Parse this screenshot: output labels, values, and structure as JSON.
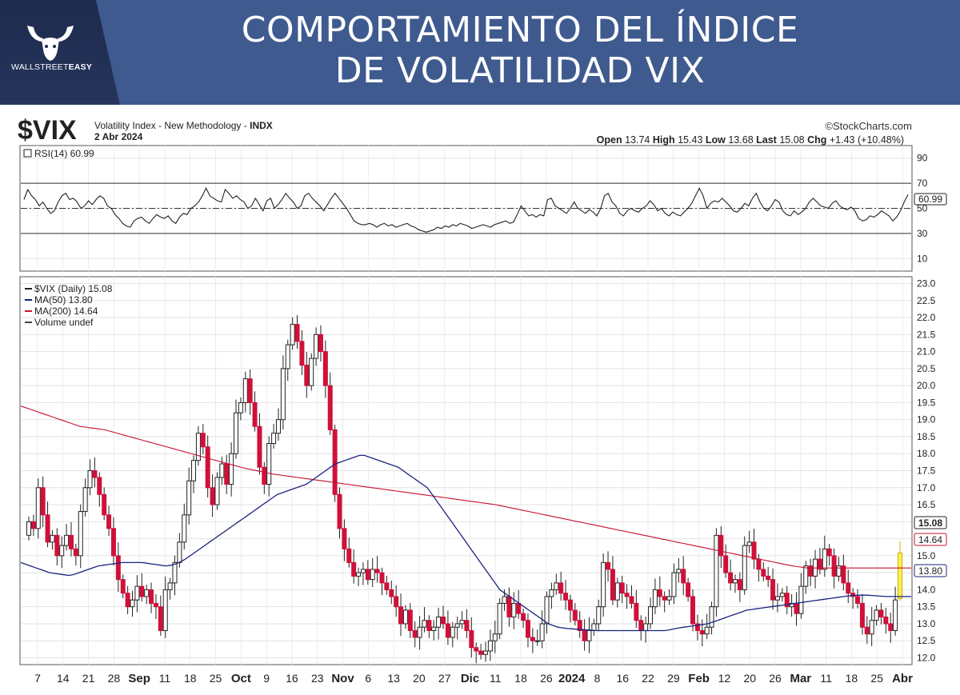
{
  "banner": {
    "title_line1": "COMPORTAMIENTO DEL ÍNDICE",
    "title_line2": "DE VOLATILIDAD VIX",
    "logo_text_light": "WALLSTREET",
    "logo_text_bold": "EASY",
    "logo_icon": "bull-head-icon",
    "background_color": "#3f5a8f",
    "logo_background_color": "#1e2a4d"
  },
  "chart_header": {
    "symbol": "$VIX",
    "description": "Volatility Index - New Methodology -",
    "exchange": "INDX",
    "date": "2 Abr 2024",
    "source": "©StockCharts.com",
    "open_label": "Open",
    "open": "13.74",
    "high_label": "High",
    "high": "15.43",
    "low_label": "Low",
    "low": "13.68",
    "last_label": "Last",
    "last": "15.08",
    "chg_label": "Chg",
    "chg": "+1.43 (+10.48%)"
  },
  "chart_data": [
    {
      "type": "line",
      "panel": "rsi",
      "legend": "RSI(14) 60.99",
      "ylim": [
        0,
        100
      ],
      "yticks": [
        "90",
        "70",
        "50",
        "30",
        "10"
      ],
      "reference_lines": [
        70,
        50,
        30
      ],
      "last_value_label": "60.99",
      "values": [
        57,
        65,
        60,
        57,
        52,
        55,
        50,
        46,
        48,
        55,
        60,
        62,
        57,
        58,
        55,
        50,
        52,
        56,
        53,
        57,
        60,
        58,
        52,
        50,
        45,
        42,
        38,
        36,
        35,
        40,
        42,
        43,
        40,
        38,
        42,
        45,
        43,
        42,
        44,
        40,
        38,
        43,
        46,
        45,
        50,
        52,
        55,
        60,
        66,
        60,
        58,
        56,
        55,
        65,
        62,
        58,
        60,
        57,
        55,
        50,
        52,
        58,
        53,
        48,
        56,
        58,
        50,
        53,
        57,
        62,
        58,
        55,
        50,
        52,
        60,
        62,
        58,
        55,
        52,
        48,
        53,
        58,
        62,
        58,
        54,
        50,
        45,
        40,
        38,
        37,
        37,
        38,
        37,
        35,
        37,
        38,
        36,
        37,
        35,
        36,
        37,
        38,
        36,
        35,
        33,
        32,
        31,
        32,
        33,
        35,
        34,
        36,
        35,
        37,
        36,
        38,
        37,
        36,
        34,
        35,
        36,
        37,
        36,
        35,
        37,
        38,
        39,
        40,
        38,
        39,
        45,
        52,
        48,
        44,
        45,
        43,
        45,
        44,
        57,
        58,
        52,
        50,
        48,
        46,
        50,
        55,
        50,
        48,
        46,
        49,
        47,
        44,
        50,
        60,
        62,
        55,
        52,
        46,
        44,
        48,
        50,
        48,
        47,
        50,
        52,
        56,
        53,
        48,
        50,
        46,
        44,
        47,
        45,
        44,
        47,
        50,
        54,
        60,
        66,
        60,
        50,
        54,
        56,
        55,
        58,
        55,
        52,
        48,
        47,
        50,
        54,
        52,
        58,
        62,
        55,
        50,
        48,
        52,
        57,
        55,
        48,
        45,
        44,
        48,
        45,
        47,
        50,
        55,
        58,
        55,
        52,
        51,
        50,
        54,
        56,
        52,
        50,
        49,
        51,
        48,
        42,
        40,
        41,
        44,
        43,
        45,
        48,
        46,
        44,
        40,
        43,
        48,
        55,
        61
      ],
      "x_labels": [
        "7",
        "14",
        "21",
        "28",
        "Sep",
        "11",
        "18",
        "25",
        "Oct",
        "9",
        "16",
        "23",
        "Nov",
        "6",
        "13",
        "20",
        "27",
        "Dic",
        "11",
        "18",
        "26",
        "2024",
        "8",
        "16",
        "22",
        "29",
        "Feb",
        "12",
        "20",
        "26",
        "Mar",
        "11",
        "18",
        "25",
        "Abr"
      ],
      "bold_x_labels": [
        "Sep",
        "Oct",
        "Nov",
        "Dic",
        "2024",
        "Feb",
        "Mar",
        "Abr"
      ]
    },
    {
      "type": "candlestick",
      "panel": "price",
      "legend": [
        {
          "label": "$VIX (Daily) 15.08",
          "color": "#222222"
        },
        {
          "label": "MA(50) 13.80",
          "color": "#1a237e"
        },
        {
          "label": "MA(200) 14.64",
          "color": "#c8102e"
        },
        {
          "label": "Volume undef",
          "color": "#444444"
        }
      ],
      "ylim": [
        11.8,
        23.2
      ],
      "yticks": [
        "23.0",
        "22.5",
        "22.0",
        "21.5",
        "21.0",
        "20.5",
        "20.0",
        "19.5",
        "19.0",
        "18.5",
        "18.0",
        "17.5",
        "17.0",
        "16.5",
        "16.0",
        "15.5",
        "15.0",
        "14.5",
        "14.0",
        "13.5",
        "13.0",
        "12.5",
        "12.0"
      ],
      "last_price_label": "15.08",
      "ma200_label": "14.64",
      "ma50_label": "13.80",
      "up_color": "#ffffff",
      "down_color": "#d0103a",
      "last_bar_color": "#ffee55",
      "ma50_color": "#1a237e",
      "ma200_color": "#c8102e",
      "close": [
        16.0,
        15.8,
        17.0,
        16.2,
        15.4,
        15.6,
        15.0,
        15.3,
        15.6,
        15.2,
        15.0,
        16.3,
        17.0,
        17.5,
        17.3,
        16.8,
        16.2,
        15.8,
        15.0,
        14.3,
        13.9,
        13.5,
        13.7,
        14.1,
        13.8,
        14.0,
        13.6,
        13.5,
        12.8,
        14.0,
        14.2,
        14.8,
        15.4,
        16.2,
        17.2,
        17.8,
        18.6,
        18.2,
        17.0,
        16.5,
        17.3,
        17.7,
        17.1,
        18.0,
        19.2,
        19.5,
        20.2,
        19.5,
        18.8,
        17.6,
        17.1,
        18.3,
        18.6,
        19.0,
        20.5,
        21.2,
        21.8,
        21.3,
        20.6,
        20.0,
        20.8,
        21.5,
        21.0,
        20.0,
        18.7,
        16.8,
        15.8,
        15.2,
        14.8,
        14.4,
        14.5,
        14.6,
        14.3,
        14.6,
        14.5,
        14.2,
        14.0,
        13.8,
        13.5,
        13.0,
        13.4,
        12.8,
        12.6,
        12.9,
        13.1,
        12.8,
        12.9,
        13.2,
        13.0,
        12.6,
        12.9,
        13.0,
        13.1,
        12.8,
        12.3,
        12.2,
        12.1,
        12.2,
        12.5,
        12.7,
        13.6,
        13.8,
        13.2,
        13.6,
        13.3,
        13.1,
        12.6,
        12.5,
        12.5,
        13.0,
        13.8,
        14.0,
        14.2,
        13.9,
        13.7,
        13.4,
        13.1,
        12.8,
        12.5,
        12.8,
        13.0,
        13.5,
        14.8,
        14.6,
        13.7,
        14.2,
        13.9,
        13.8,
        13.6,
        13.1,
        12.8,
        13.0,
        13.5,
        14.0,
        13.8,
        13.7,
        13.8,
        14.5,
        14.6,
        14.2,
        13.8,
        13.0,
        12.8,
        12.7,
        12.9,
        13.5,
        15.6,
        15.0,
        14.5,
        14.2,
        14.3,
        14.0,
        15.3,
        15.4,
        14.9,
        14.6,
        14.4,
        14.3,
        13.7,
        13.8,
        13.9,
        13.5,
        13.6,
        13.3,
        14.1,
        14.7,
        14.4,
        14.9,
        14.6,
        15.2,
        15.0,
        14.4,
        14.7,
        14.2,
        13.9,
        13.8,
        13.6,
        12.9,
        12.7,
        13.1,
        13.4,
        13.2,
        13.0,
        12.8,
        13.7,
        15.08
      ],
      "open": [
        15.6,
        16.0,
        15.8,
        17.0,
        16.2,
        15.4,
        15.6,
        15.0,
        15.3,
        15.6,
        15.2,
        15.0,
        16.3,
        17.0,
        17.5,
        17.3,
        16.8,
        16.2,
        15.8,
        15.0,
        14.3,
        13.9,
        13.5,
        13.7,
        14.1,
        13.8,
        14.0,
        13.6,
        13.5,
        12.8,
        14.0,
        14.2,
        14.8,
        15.4,
        16.2,
        17.2,
        17.8,
        18.6,
        18.2,
        17.0,
        16.5,
        17.3,
        17.7,
        17.1,
        18.0,
        19.2,
        19.5,
        20.2,
        19.5,
        18.8,
        17.6,
        17.1,
        18.3,
        18.6,
        19.0,
        20.5,
        21.2,
        21.8,
        21.3,
        20.6,
        20.0,
        20.8,
        21.5,
        21.0,
        20.0,
        18.7,
        16.8,
        15.8,
        15.2,
        14.8,
        14.4,
        14.5,
        14.6,
        14.3,
        14.6,
        14.5,
        14.2,
        14.0,
        13.8,
        13.5,
        13.0,
        13.4,
        12.8,
        12.6,
        12.9,
        13.1,
        12.8,
        12.9,
        13.2,
        13.0,
        12.6,
        12.9,
        13.0,
        13.1,
        12.8,
        12.3,
        12.2,
        12.1,
        12.2,
        12.5,
        12.7,
        13.6,
        13.8,
        13.2,
        13.6,
        13.3,
        13.1,
        12.6,
        12.5,
        12.5,
        13.0,
        13.8,
        14.0,
        14.2,
        13.9,
        13.7,
        13.4,
        13.1,
        12.8,
        12.5,
        12.8,
        13.0,
        13.5,
        14.8,
        14.6,
        13.7,
        14.2,
        13.9,
        13.8,
        13.6,
        13.1,
        12.8,
        13.0,
        13.5,
        14.0,
        13.8,
        13.7,
        13.8,
        14.5,
        14.6,
        14.2,
        13.8,
        13.0,
        12.8,
        12.7,
        12.9,
        13.5,
        15.6,
        15.0,
        14.5,
        14.2,
        14.3,
        14.0,
        15.3,
        15.4,
        14.9,
        14.6,
        14.4,
        14.3,
        13.7,
        13.8,
        13.9,
        13.5,
        13.6,
        13.3,
        14.1,
        14.7,
        14.4,
        14.9,
        14.6,
        15.2,
        15.0,
        14.4,
        14.7,
        14.2,
        13.9,
        13.8,
        13.6,
        12.9,
        12.7,
        13.1,
        13.4,
        13.2,
        13.0,
        12.8,
        13.74
      ],
      "ma50": [
        14.8,
        14.75,
        14.7,
        14.65,
        14.6,
        14.55,
        14.5,
        14.48,
        14.46,
        14.44,
        14.42,
        14.45,
        14.5,
        14.55,
        14.6,
        14.65,
        14.7,
        14.72,
        14.74,
        14.76,
        14.78,
        14.8,
        14.8,
        14.8,
        14.8,
        14.8,
        14.78,
        14.76,
        14.74,
        14.72,
        14.7,
        14.72,
        14.76,
        14.82,
        14.9,
        15.0,
        15.1,
        15.2,
        15.3,
        15.4,
        15.5,
        15.6,
        15.7,
        15.8,
        15.9,
        16.0,
        16.1,
        16.2,
        16.3,
        16.4,
        16.5,
        16.6,
        16.7,
        16.8,
        16.85,
        16.9,
        16.95,
        17.0,
        17.05,
        17.1,
        17.2,
        17.3,
        17.4,
        17.5,
        17.6,
        17.7,
        17.75,
        17.8,
        17.85,
        17.9,
        17.95,
        17.95,
        17.9,
        17.85,
        17.8,
        17.75,
        17.7,
        17.65,
        17.6,
        17.5,
        17.4,
        17.3,
        17.2,
        17.1,
        17.0,
        16.8,
        16.6,
        16.4,
        16.2,
        16.0,
        15.8,
        15.6,
        15.4,
        15.2,
        15.0,
        14.8,
        14.6,
        14.4,
        14.2,
        14.0,
        13.9,
        13.8,
        13.7,
        13.6,
        13.5,
        13.4,
        13.3,
        13.2,
        13.1,
        13.0,
        12.95,
        12.9,
        12.88,
        12.86,
        12.85,
        12.84,
        12.83,
        12.82,
        12.81,
        12.8,
        12.8,
        12.8,
        12.8,
        12.8,
        12.8,
        12.8,
        12.8,
        12.8,
        12.8,
        12.8,
        12.8,
        12.8,
        12.8,
        12.8,
        12.82,
        12.85,
        12.88,
        12.9,
        12.92,
        12.94,
        12.96,
        12.98,
        13.0,
        13.05,
        13.1,
        13.15,
        13.2,
        13.25,
        13.3,
        13.35,
        13.4,
        13.42,
        13.44,
        13.46,
        13.48,
        13.5,
        13.52,
        13.54,
        13.56,
        13.58,
        13.6,
        13.62,
        13.64,
        13.66,
        13.68,
        13.7,
        13.72,
        13.74,
        13.76,
        13.78,
        13.8,
        13.82,
        13.83,
        13.84,
        13.84,
        13.84,
        13.83,
        13.82,
        13.81,
        13.8,
        13.8,
        13.8,
        13.8,
        13.8,
        13.8
      ],
      "ma200": [
        19.4,
        19.35,
        19.3,
        19.25,
        19.2,
        19.15,
        19.1,
        19.05,
        19.0,
        18.95,
        18.9,
        18.85,
        18.8,
        18.78,
        18.76,
        18.74,
        18.72,
        18.7,
        18.66,
        18.62,
        18.58,
        18.54,
        18.5,
        18.46,
        18.42,
        18.38,
        18.34,
        18.3,
        18.26,
        18.22,
        18.18,
        18.14,
        18.1,
        18.06,
        18.02,
        17.98,
        17.94,
        17.9,
        17.86,
        17.82,
        17.78,
        17.74,
        17.7,
        17.66,
        17.62,
        17.58,
        17.55,
        17.52,
        17.49,
        17.46,
        17.43,
        17.4,
        17.38,
        17.36,
        17.34,
        17.32,
        17.3,
        17.28,
        17.26,
        17.24,
        17.22,
        17.2,
        17.18,
        17.16,
        17.14,
        17.12,
        17.1,
        17.08,
        17.06,
        17.04,
        17.02,
        17.0,
        16.98,
        16.96,
        16.94,
        16.92,
        16.9,
        16.88,
        16.86,
        16.84,
        16.82,
        16.8,
        16.78,
        16.76,
        16.74,
        16.72,
        16.7,
        16.68,
        16.66,
        16.64,
        16.62,
        16.6,
        16.58,
        16.56,
        16.54,
        16.52,
        16.5,
        16.47,
        16.44,
        16.41,
        16.38,
        16.35,
        16.32,
        16.29,
        16.26,
        16.23,
        16.2,
        16.17,
        16.14,
        16.11,
        16.08,
        16.05,
        16.02,
        15.99,
        15.96,
        15.93,
        15.9,
        15.87,
        15.84,
        15.81,
        15.78,
        15.75,
        15.72,
        15.69,
        15.66,
        15.63,
        15.6,
        15.57,
        15.54,
        15.51,
        15.48,
        15.45,
        15.42,
        15.39,
        15.36,
        15.33,
        15.3,
        15.27,
        15.24,
        15.21,
        15.18,
        15.15,
        15.12,
        15.09,
        15.06,
        15.03,
        15.0,
        14.97,
        14.94,
        14.91,
        14.88,
        14.85,
        14.82,
        14.79,
        14.76,
        14.73,
        14.7,
        14.68,
        14.66,
        14.64,
        14.64,
        14.64,
        14.64,
        14.64,
        14.64,
        14.64,
        14.64,
        14.64,
        14.64,
        14.64,
        14.64,
        14.64,
        14.64,
        14.64,
        14.64,
        14.64,
        14.64,
        14.64,
        14.64,
        14.64,
        14.64
      ]
    }
  ]
}
